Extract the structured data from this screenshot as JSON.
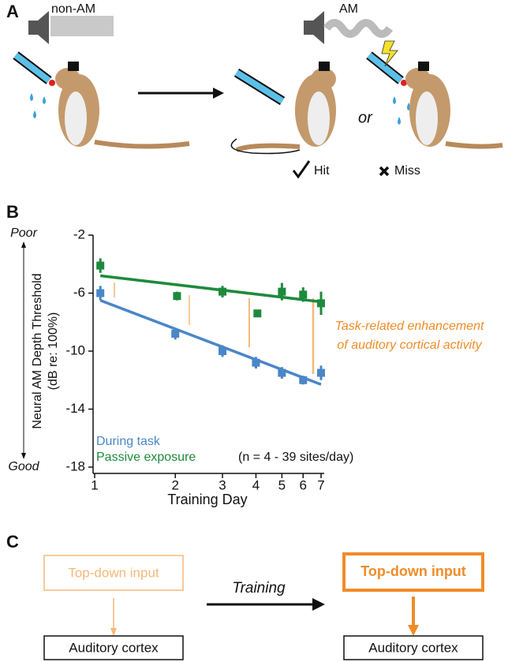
{
  "panel_a": {
    "label": "A",
    "sound_1": "non-AM",
    "sound_2": "AM",
    "or": "or",
    "hit": "Hit",
    "miss": "Miss"
  },
  "chart_data": {
    "panel_label": "B",
    "type": "scatter",
    "x_label": "Training Day",
    "y_label": [
      "Neural AM Depth Threshold",
      "(dB re: 100%)"
    ],
    "y_top_label": "Poor",
    "y_bottom_label": "Good",
    "xscale": "log",
    "xlim": [
      1,
      7
    ],
    "xticks": [
      1,
      2,
      3,
      4,
      5,
      6,
      7
    ],
    "ylim": [
      -18,
      -2
    ],
    "yticks": [
      -2,
      -6,
      -10,
      -14,
      -18
    ],
    "series": [
      {
        "name": "During task",
        "color": "#4a86c8",
        "x": [
          1.05,
          2,
          3,
          4,
          5,
          6,
          7
        ],
        "values": [
          -6.0,
          -8.8,
          -10.0,
          -10.8,
          -11.5,
          -12.0,
          -11.5
        ],
        "errors": [
          0.5,
          0.4,
          0.4,
          0.4,
          0.4,
          0.3,
          0.5
        ],
        "fit": {
          "x": [
            1.05,
            7
          ],
          "values": [
            -6.5,
            -12.3
          ]
        }
      },
      {
        "name": "Passive exposure",
        "color": "#1e8a3c",
        "x": [
          1.05,
          2.03,
          3,
          4.05,
          5,
          6,
          7
        ],
        "values": [
          -4.1,
          -6.2,
          -5.9,
          -7.4,
          -5.9,
          -6.1,
          -6.7
        ],
        "errors": [
          0.5,
          0.3,
          0.4,
          0.2,
          0.6,
          0.5,
          0.8
        ],
        "fit": {
          "x": [
            1.05,
            7
          ],
          "values": [
            -4.8,
            -6.6
          ]
        }
      }
    ],
    "note": "(n = 4 - 39 sites/day)",
    "annotation": [
      "Task-related enhancement",
      "of auditory cortical activity"
    ]
  },
  "panel_c": {
    "label": "C",
    "input_before": "Top-down input",
    "cortex_before": "Auditory cortex",
    "arrow_label": "Training",
    "input_after": "Top-down input",
    "cortex_after": "Auditory cortex"
  }
}
